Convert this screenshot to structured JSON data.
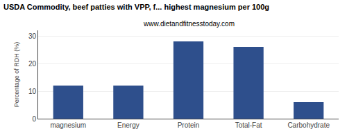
{
  "chart_data": {
    "type": "bar",
    "title": "USDA Commodity, beef patties with VPP, f... highest magnesium per 100g",
    "subtitle": "www.dietandfitnesstoday.com",
    "ylabel": "Percentage of RDH (%)",
    "categories": [
      "magnesium",
      "Energy",
      "Protein",
      "Total-Fat",
      "Carbohydrate"
    ],
    "values": [
      12,
      12,
      28,
      26,
      6
    ],
    "color": "#2e4f8c",
    "ylim": [
      0,
      32
    ],
    "yticks": [
      0,
      10,
      20,
      30
    ],
    "grid": true
  }
}
